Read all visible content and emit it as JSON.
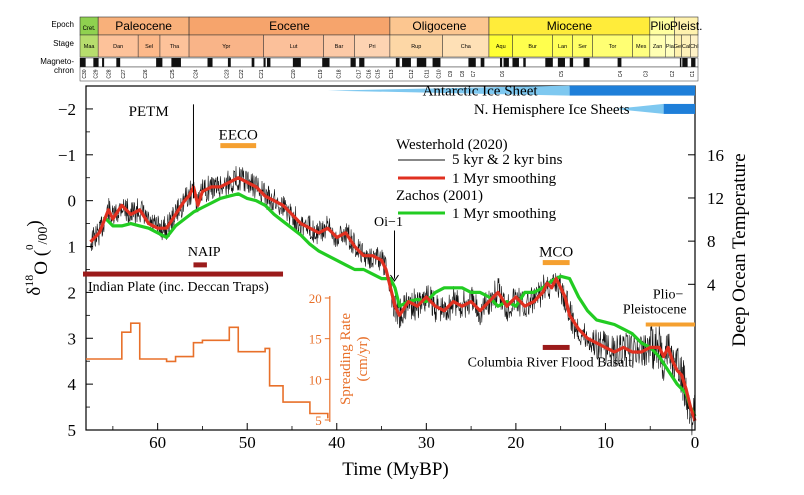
{
  "chart_data": {
    "type": "line",
    "title": "",
    "xlabel": "Time (MyBP)",
    "ylabel_main": "δ",
    "ylabel_sup": "18",
    "ylabel_rest": "O (",
    "ylabel_unit_sup": "0",
    "ylabel_unit_sub": "/00",
    "ylabel_close": ")",
    "y2label": "Deep Ocean Temperature",
    "xlim": [
      68,
      0
    ],
    "ylim": [
      5,
      -2.5
    ],
    "xticks": [
      60,
      50,
      40,
      30,
      20,
      10,
      0
    ],
    "xtick_labels": [
      "60",
      "50",
      "40",
      "30",
      "20",
      "10",
      "0"
    ],
    "yticks": [
      -2,
      -1,
      0,
      1,
      2,
      3,
      4,
      5
    ],
    "ytick_labels": [
      "−2",
      "−1",
      "0",
      "1",
      "2",
      "3",
      "4",
      "5"
    ],
    "y2ticks": [
      16,
      12,
      8,
      4
    ],
    "y2tick_labels": [
      "16",
      "12",
      "8",
      "4"
    ],
    "timescale": {
      "row_labels": [
        "Epoch",
        "Stage",
        "Magneto-\nchron"
      ],
      "epochs": [
        {
          "name": "Cret.",
          "start": 68,
          "end": 66,
          "color": "#8fd14f"
        },
        {
          "name": "Paleocene",
          "start": 66,
          "end": 56,
          "color": "#f8b07a"
        },
        {
          "name": "Eocene",
          "start": 56,
          "end": 33.9,
          "color": "#f6a46c"
        },
        {
          "name": "Oligocene",
          "start": 33.9,
          "end": 23,
          "color": "#fcc690"
        },
        {
          "name": "Miocene",
          "start": 23,
          "end": 5.3,
          "color": "#ffec3a"
        },
        {
          "name": "Plio.",
          "start": 5.3,
          "end": 2.6,
          "color": "#ffffa0"
        },
        {
          "name": "Pleist.",
          "start": 2.6,
          "end": 0,
          "color": "#fff2ae"
        }
      ],
      "stages": [
        {
          "name": "Maa",
          "start": 68,
          "end": 66,
          "color": "#b7dd6d"
        },
        {
          "name": "Dan",
          "start": 66,
          "end": 61.6,
          "color": "#fdc29a"
        },
        {
          "name": "Sel",
          "start": 61.6,
          "end": 59.2,
          "color": "#fdb98a"
        },
        {
          "name": "Tha",
          "start": 59.2,
          "end": 56,
          "color": "#fdc29a"
        },
        {
          "name": "Ypr",
          "start": 56,
          "end": 47.8,
          "color": "#f9b488"
        },
        {
          "name": "Lut",
          "start": 47.8,
          "end": 41.2,
          "color": "#fbc09a"
        },
        {
          "name": "Bar",
          "start": 41.2,
          "end": 37.8,
          "color": "#fcc9a6"
        },
        {
          "name": "Pri",
          "start": 37.8,
          "end": 33.9,
          "color": "#fdd3b2"
        },
        {
          "name": "Rup",
          "start": 33.9,
          "end": 28.1,
          "color": "#fdd7a6"
        },
        {
          "name": "Cha",
          "start": 28.1,
          "end": 23,
          "color": "#fee0b6"
        },
        {
          "name": "Aqu",
          "start": 23,
          "end": 20.4,
          "color": "#ffff33"
        },
        {
          "name": "Bur",
          "start": 20.4,
          "end": 16,
          "color": "#ffff4d"
        },
        {
          "name": "Lan",
          "start": 16,
          "end": 13.8,
          "color": "#ffff59"
        },
        {
          "name": "Ser",
          "start": 13.8,
          "end": 11.6,
          "color": "#ffff66"
        },
        {
          "name": "Tor",
          "start": 11.6,
          "end": 7.2,
          "color": "#ffff73"
        },
        {
          "name": "Mes",
          "start": 7.2,
          "end": 5.3,
          "color": "#ffff80"
        },
        {
          "name": "Zan",
          "start": 5.3,
          "end": 3.6,
          "color": "#ffffb3"
        },
        {
          "name": "Pia",
          "start": 3.6,
          "end": 2.6,
          "color": "#ffffbf"
        },
        {
          "name": "Gel",
          "start": 2.6,
          "end": 1.8,
          "color": "#fff2ae"
        },
        {
          "name": "Cal",
          "start": 1.8,
          "end": 0.8,
          "color": "#fff2b9"
        },
        {
          "name": "ChI",
          "start": 0.8,
          "end": 0,
          "color": "#fff2c7"
        }
      ],
      "chron_labels": [
        {
          "name": "C30",
          "age": 67.5
        },
        {
          "name": "C29",
          "age": 66.2
        },
        {
          "name": "C28",
          "age": 64.8
        },
        {
          "name": "C27",
          "age": 63.2
        },
        {
          "name": "C26",
          "age": 60.8
        },
        {
          "name": "C25",
          "age": 57.8
        },
        {
          "name": "C24",
          "age": 55.2
        },
        {
          "name": "C23",
          "age": 51.8
        },
        {
          "name": "C22",
          "age": 50.2
        },
        {
          "name": "C21",
          "age": 48.0
        },
        {
          "name": "C20",
          "age": 44.5
        },
        {
          "name": "C19",
          "age": 41.5
        },
        {
          "name": "C18",
          "age": 39.5
        },
        {
          "name": "C17",
          "age": 37.3
        },
        {
          "name": "C16",
          "age": 36.2
        },
        {
          "name": "C15",
          "age": 35.2
        },
        {
          "name": "C13",
          "age": 33.7
        },
        {
          "name": "C12",
          "age": 31.5
        },
        {
          "name": "C11",
          "age": 29.8
        },
        {
          "name": "C10",
          "age": 28.5
        },
        {
          "name": "C9",
          "age": 27.2
        },
        {
          "name": "C8",
          "age": 25.9
        },
        {
          "name": "C7",
          "age": 24.7
        },
        {
          "name": "C6",
          "age": 21.5
        },
        {
          "name": "C5",
          "age": 15.0
        },
        {
          "name": "C4",
          "age": 8.5
        },
        {
          "name": "C3",
          "age": 5.7
        },
        {
          "name": "C2",
          "age": 2.8
        },
        {
          "name": "C1",
          "age": 0.6
        }
      ]
    },
    "legend": {
      "source1": "Westerhold (2020)",
      "source1_bins": "5 kyr & 2 kyr bins",
      "source1_smooth": "1 Myr smoothing",
      "source2": "Zachos (2001)",
      "source2_smooth": "1 Myr smoothing",
      "placement": "top-right"
    },
    "series": [
      {
        "color": "#e03020",
        "x": [
          67.5,
          66.5,
          65.5,
          65,
          64,
          63,
          62,
          61,
          60,
          59,
          58,
          57,
          56.5,
          56,
          55.5,
          55,
          54,
          53,
          52,
          51,
          50,
          49,
          48,
          47,
          46,
          45,
          44,
          43,
          42,
          41,
          40,
          39,
          38,
          37,
          36,
          35,
          34.5,
          34,
          33.5,
          33,
          32,
          31,
          30,
          29,
          28,
          27,
          26,
          25,
          24,
          23,
          22,
          21,
          20,
          19,
          18,
          17,
          16.5,
          16,
          15.5,
          15,
          14.5,
          14,
          13,
          12,
          11,
          10,
          9,
          8,
          7,
          6,
          5,
          4,
          3.5,
          3,
          2.5,
          2,
          1.5,
          1,
          0.5,
          0
        ],
        "y": [
          0.9,
          0.7,
          0.2,
          0.4,
          0.1,
          0.3,
          0.2,
          0.5,
          0.6,
          0.6,
          0.3,
          0,
          -0.1,
          -0.3,
          0.1,
          -0.2,
          -0.3,
          -0.3,
          -0.4,
          -0.5,
          -0.4,
          -0.3,
          -0.1,
          0,
          0.1,
          0.3,
          0.5,
          0.6,
          0.7,
          0.6,
          0.8,
          0.7,
          1,
          1.2,
          1.2,
          1.3,
          1.5,
          1.9,
          2.3,
          2.5,
          2.2,
          2.3,
          2.1,
          2.3,
          2.4,
          2.2,
          2.3,
          2.2,
          2.4,
          2.2,
          2,
          2.3,
          2.1,
          2.3,
          2.2,
          2,
          1.8,
          1.9,
          1.7,
          1.9,
          2.1,
          2.5,
          2.8,
          3,
          3.1,
          3.2,
          3.3,
          3.2,
          3.3,
          3.3,
          3.2,
          3.2,
          3.4,
          3.2,
          3.5,
          3.7,
          3.8,
          4.1,
          4.5,
          4.8
        ]
      },
      {
        "color": "#22cc22",
        "x": [
          66,
          65,
          64,
          63,
          62,
          61,
          60,
          59,
          58,
          57,
          56,
          55,
          54,
          53,
          52,
          51,
          50,
          49,
          48,
          47,
          46,
          45,
          44,
          43,
          42,
          41,
          40,
          39,
          38,
          37,
          36,
          35,
          34,
          33.5,
          33,
          32,
          31,
          30,
          29,
          28,
          27,
          26,
          25,
          24,
          23,
          22,
          21,
          20,
          19,
          18,
          17,
          16,
          15,
          14,
          13,
          12,
          11,
          10,
          9,
          8,
          7,
          6,
          5,
          4,
          3,
          2,
          1,
          0.5,
          0
        ],
        "y": [
          0.35,
          0.55,
          0.55,
          0.5,
          0.55,
          0.6,
          0.7,
          0.8,
          0.55,
          0.4,
          0.25,
          0.15,
          0.05,
          -0.05,
          -0.1,
          -0.15,
          -0.05,
          0,
          0.1,
          0.3,
          0.45,
          0.6,
          0.75,
          0.95,
          1.1,
          1.2,
          1.3,
          1.4,
          1.5,
          1.5,
          1.6,
          1.7,
          1.7,
          1.9,
          2.3,
          2.2,
          2.15,
          2.2,
          2.0,
          1.9,
          1.9,
          1.9,
          2.0,
          2.0,
          2.1,
          2.3,
          2.2,
          2.3,
          2.0,
          2.0,
          1.9,
          1.75,
          1.65,
          1.7,
          2.1,
          2.4,
          2.6,
          2.65,
          2.7,
          2.8,
          2.9,
          3.1,
          3.2,
          3.4,
          3.7,
          4.0,
          4.2,
          4.5,
          4.7
        ]
      }
    ],
    "raw_noise_color": "#111111",
    "ice_sheets": [
      {
        "label": "Antarctic Ice Sheet",
        "start": 41,
        "solid_from": 14,
        "end": 0,
        "y": -2.4
      },
      {
        "label": "N. Hemisphere Ice Sheets",
        "start": 9,
        "solid_from": 3.5,
        "end": 0,
        "y": -2.0
      }
    ],
    "events": [
      {
        "label": "PETM",
        "x": 56,
        "y_top": -2.1,
        "y_bottom": -0.05
      },
      {
        "label": "EECO",
        "start": 53,
        "end": 49,
        "y": -1.2
      },
      {
        "label": "MCO",
        "start": 17,
        "end": 14,
        "y": 1.35
      },
      {
        "label": "Oi−1",
        "x": 34,
        "y": 1.3
      },
      {
        "label": "NAIP",
        "start": 56,
        "end": 54.5,
        "y": 1.4
      },
      {
        "label": "Indian Plate (inc. Deccan Traps)",
        "start": 68,
        "end": 46,
        "y": 1.6
      },
      {
        "label": "Columbia River Flood Basalt",
        "start": 17,
        "end": 14,
        "y": 3.2
      },
      {
        "label": "Plio−\nPleistocene",
        "start": 5.5,
        "end": 0,
        "y": 2.7
      }
    ],
    "spreading_rate": {
      "label": "Spreading Rate\n(cm/yr)",
      "color": "#e8702a",
      "yticks": [
        5,
        10,
        15,
        20
      ],
      "ytick_labels": [
        "5",
        "10",
        "15",
        "20"
      ],
      "ylim": [
        5,
        20
      ],
      "x": [
        68,
        66,
        64,
        63,
        62,
        59,
        58,
        56,
        55,
        53,
        52,
        51,
        48,
        47.5,
        46,
        43,
        41
      ],
      "y": [
        12.5,
        12.5,
        15.8,
        16.9,
        12.5,
        12.2,
        12.8,
        14.5,
        14.8,
        14.8,
        16.4,
        13.4,
        13.8,
        9.2,
        7.2,
        5.8,
        5.2
      ]
    }
  }
}
